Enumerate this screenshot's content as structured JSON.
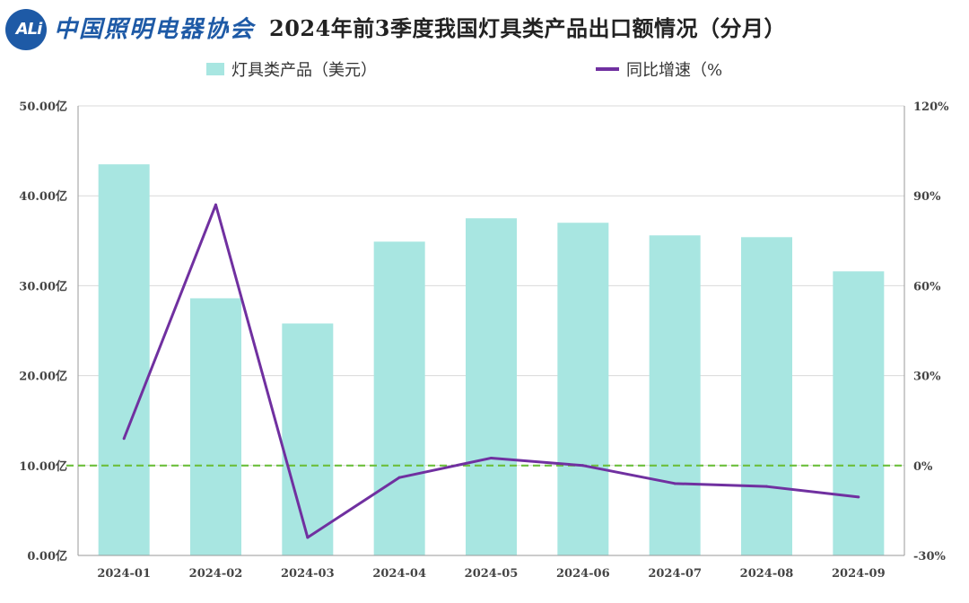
{
  "header": {
    "logo_abbr": "ALi",
    "logo_name": "中国照明电器协会",
    "title": "2024年前3季度我国灯具类产品出口额情况（分月）"
  },
  "colors": {
    "bar": "#a8e6e1",
    "line": "#7030a0",
    "zero_line": "#6cbf3c",
    "grid": "#d9d9d9",
    "logo": "#1e5aa6"
  },
  "chart_data": {
    "type": "bar",
    "categories": [
      "2024-01",
      "2024-02",
      "2024-03",
      "2024-04",
      "2024-05",
      "2024-06",
      "2024-07",
      "2024-08",
      "2024-09"
    ],
    "series": [
      {
        "name": "灯具类产品（美元）",
        "type": "bar",
        "axis": "left",
        "values": [
          43.5,
          28.6,
          25.8,
          34.9,
          37.5,
          37.0,
          35.6,
          35.4,
          31.6
        ]
      },
      {
        "name": "同比增速（%",
        "type": "line",
        "axis": "right",
        "values": [
          9,
          87,
          -24,
          -4,
          2.5,
          0,
          -6,
          -7,
          -10.5
        ]
      }
    ],
    "left_axis": {
      "ticks": [
        "0.00亿",
        "10.00亿",
        "20.00亿",
        "30.00亿",
        "40.00亿",
        "50.00亿"
      ],
      "ylim": [
        0,
        50
      ]
    },
    "right_axis": {
      "ticks": [
        "-30%",
        "0%",
        "30%",
        "60%",
        "90%",
        "120%"
      ],
      "ylim": [
        -30,
        120
      ]
    },
    "reference_line": {
      "axis": "right",
      "value": 0,
      "style": "dashed"
    },
    "grid": true,
    "legend_position": "top"
  }
}
